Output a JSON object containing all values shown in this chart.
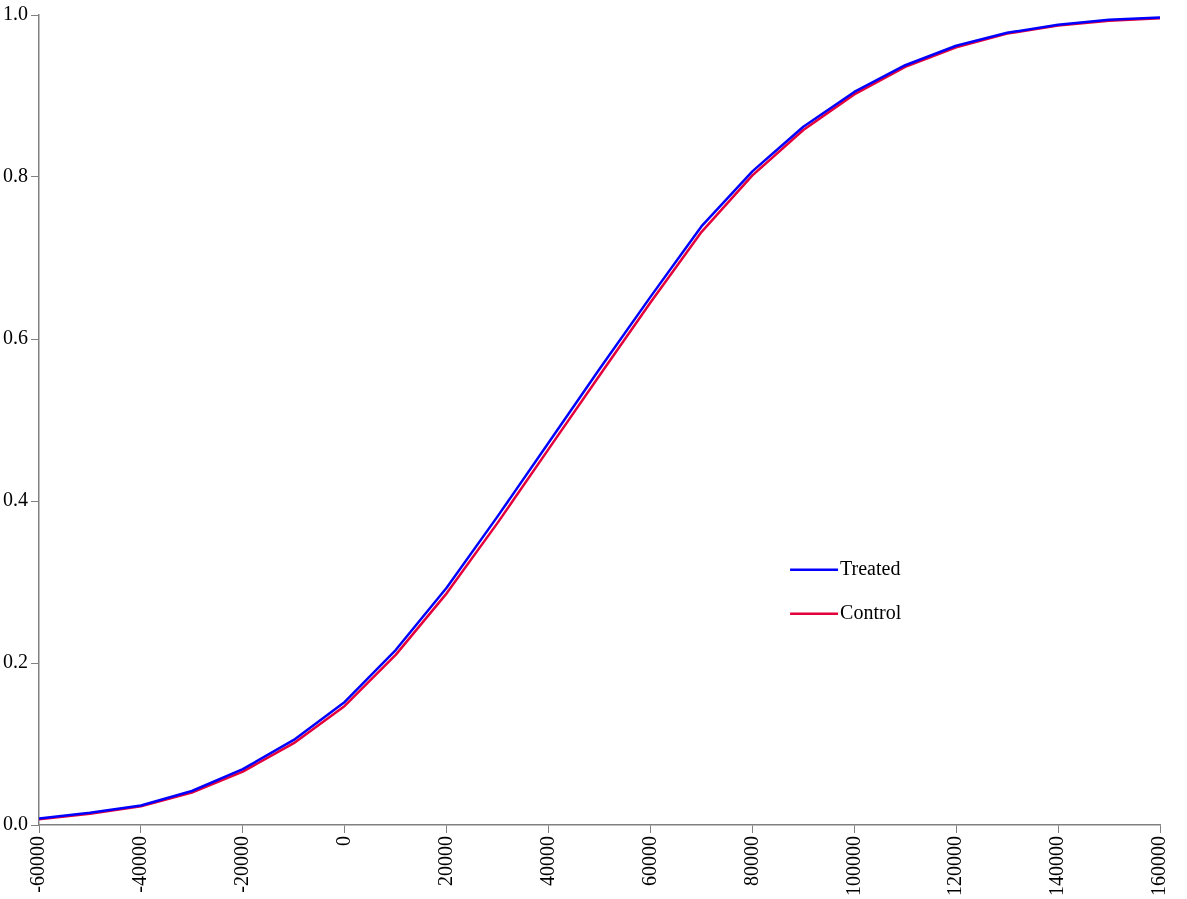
{
  "chart_data": {
    "type": "line",
    "x": [
      -60000,
      -50000,
      -40000,
      -30000,
      -20000,
      -10000,
      0,
      10000,
      20000,
      30000,
      40000,
      50000,
      60000,
      70000,
      80000,
      90000,
      100000,
      110000,
      120000,
      130000,
      140000,
      150000,
      160000
    ],
    "series": [
      {
        "name": "Treated",
        "color": "#0000ff",
        "values": [
          0.008,
          0.015,
          0.024,
          0.042,
          0.069,
          0.105,
          0.152,
          0.216,
          0.293,
          0.381,
          0.472,
          0.563,
          0.652,
          0.739,
          0.807,
          0.862,
          0.905,
          0.938,
          0.962,
          0.978,
          0.988,
          0.994,
          0.997
        ]
      },
      {
        "name": "Control",
        "color": "#e4003a",
        "values": [
          0.007,
          0.014,
          0.023,
          0.04,
          0.066,
          0.101,
          0.147,
          0.21,
          0.286,
          0.373,
          0.464,
          0.555,
          0.645,
          0.732,
          0.802,
          0.858,
          0.902,
          0.936,
          0.96,
          0.977,
          0.987,
          0.993,
          0.996
        ]
      }
    ],
    "xlim": [
      -60000,
      160000
    ],
    "xticks": [
      -60000,
      -40000,
      -20000,
      0,
      20000,
      40000,
      60000,
      80000,
      100000,
      120000,
      140000,
      160000
    ],
    "ylim": [
      0,
      1
    ],
    "yticks": [
      {
        "value": 0,
        "label": "0.0"
      },
      {
        "value": 0.2,
        "label": "0.2"
      },
      {
        "value": 0.4,
        "label": "0.4"
      },
      {
        "value": 0.6,
        "label": "0.6"
      },
      {
        "value": 0.8,
        "label": "0.8"
      },
      {
        "value": 1,
        "label": "1.0"
      }
    ],
    "grid": false,
    "legend": "right",
    "marker": "none",
    "line_style": "solid"
  }
}
